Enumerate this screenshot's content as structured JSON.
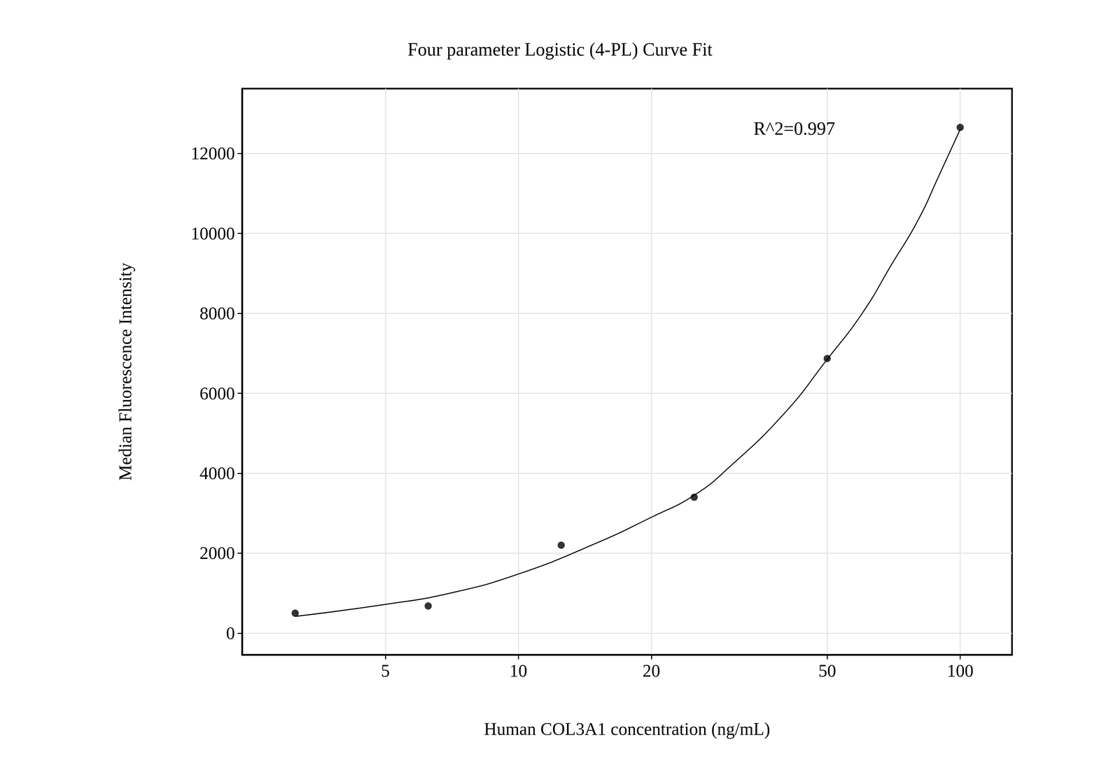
{
  "chart_data": {
    "type": "scatter",
    "title": "Four parameter Logistic (4-PL) Curve Fit",
    "x_label": "Human COL3A1 concentration (ng/mL)",
    "y_label": "Median Fluorescence Intensity",
    "log": "x",
    "grid": true,
    "xlim": [
      2.37,
      131
    ],
    "xticks": [
      5,
      10,
      20,
      50,
      100
    ],
    "ylim": [
      -540,
      13620
    ],
    "yticks": [
      0,
      2000,
      4000,
      6000,
      8000,
      10000,
      12000
    ],
    "annotations": [
      {
        "text": "R^2=0.997"
      }
    ],
    "series": [
      {
        "type": "scatter",
        "color": "#000000",
        "marker": "circle",
        "x": [
          3.125,
          6.25,
          12.5,
          25,
          50,
          100
        ],
        "values": [
          500,
          680,
          2200,
          3400,
          6870,
          12650
        ]
      },
      {
        "type": "line",
        "color": "#000000",
        "line_style": "solid",
        "x": [
          3.125,
          5,
          7,
          10,
          15,
          20,
          25,
          30,
          40,
          50,
          60,
          70,
          80,
          90,
          100
        ],
        "values": [
          420,
          720,
          1000,
          1480,
          2250,
          2900,
          3450,
          4150,
          5500,
          6850,
          8000,
          9230,
          10300,
          11500,
          12600
        ]
      }
    ]
  }
}
